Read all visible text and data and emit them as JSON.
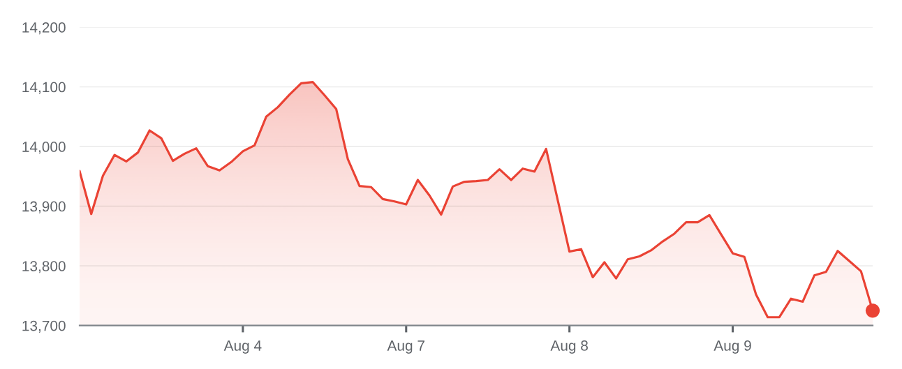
{
  "chart_data": {
    "type": "area",
    "categories": [
      null,
      null,
      null,
      null,
      null,
      null,
      null,
      null,
      null,
      null,
      null,
      null,
      null,
      null,
      "Aug 4",
      null,
      null,
      null,
      null,
      null,
      null,
      null,
      null,
      null,
      null,
      null,
      null,
      null,
      "Aug 7",
      null,
      null,
      null,
      null,
      null,
      null,
      null,
      null,
      null,
      null,
      null,
      null,
      null,
      "Aug 8",
      null,
      null,
      null,
      null,
      null,
      null,
      null,
      null,
      null,
      null,
      null,
      null,
      null,
      "Aug 9",
      null,
      null,
      null,
      null,
      null,
      null,
      null,
      null,
      null,
      null,
      null,
      null
    ],
    "ylim": [
      13700,
      14200
    ],
    "yticks": [
      {
        "value": 13700,
        "label": "13,700"
      },
      {
        "value": 13800,
        "label": "13,800"
      },
      {
        "value": 13900,
        "label": "13,900"
      },
      {
        "value": 14000,
        "label": "14,000"
      },
      {
        "value": 14100,
        "label": "14,100"
      },
      {
        "value": 14200,
        "label": "14,200"
      }
    ],
    "grid": "y",
    "series": [
      {
        "color": "#ea4335",
        "values": [
          13959,
          13887,
          13951,
          13986,
          13975,
          13990,
          14027,
          14014,
          13976,
          13988,
          13997,
          13967,
          13960,
          13974,
          13992,
          14002,
          14050,
          14066,
          14087,
          14106,
          14108,
          14086,
          14063,
          13979,
          13934,
          13932,
          13912,
          13908,
          13903,
          13944,
          13918,
          13886,
          13933,
          13941,
          13942,
          13944,
          13962,
          13944,
          13963,
          13958,
          13996,
          13910,
          13824,
          13828,
          13781,
          13806,
          13779,
          13811,
          13816,
          13826,
          13841,
          13854,
          13873,
          13873,
          13885,
          13853,
          13821,
          13815,
          13752,
          13714,
          13714,
          13745,
          13740,
          13784,
          13790,
          13825,
          13808,
          13791,
          13725
        ]
      },
      {
        "type": "scatter",
        "color": "#ea4335",
        "marker": "circle",
        "values": [
          null,
          null,
          null,
          null,
          null,
          null,
          null,
          null,
          null,
          null,
          null,
          null,
          null,
          null,
          null,
          null,
          null,
          null,
          null,
          null,
          null,
          null,
          null,
          null,
          null,
          null,
          null,
          null,
          null,
          null,
          null,
          null,
          null,
          null,
          null,
          null,
          null,
          null,
          null,
          null,
          null,
          null,
          null,
          null,
          null,
          null,
          null,
          null,
          null,
          null,
          null,
          null,
          null,
          null,
          null,
          null,
          null,
          null,
          null,
          null,
          null,
          null,
          null,
          null,
          null,
          null,
          null,
          null,
          13725
        ]
      }
    ]
  }
}
